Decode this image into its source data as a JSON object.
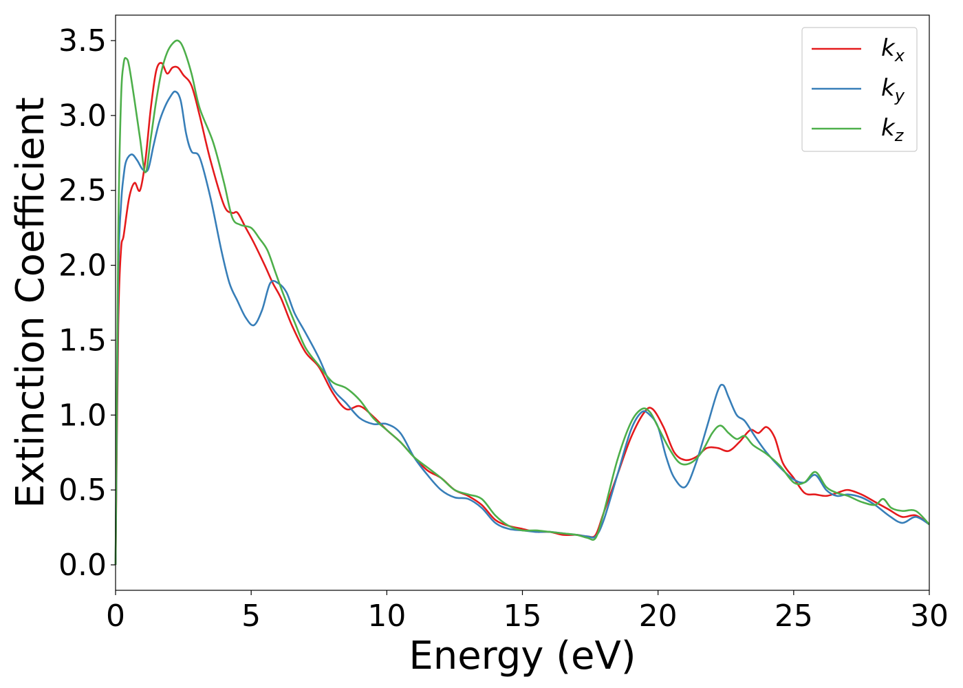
{
  "chart_data": {
    "type": "line",
    "title": "",
    "xlabel": "Energy (eV)",
    "ylabel": "Extinction Coefficient",
    "xlim": [
      0,
      30
    ],
    "ylim": [
      -0.17,
      3.67
    ],
    "xticks": [
      0,
      5,
      10,
      15,
      20,
      25,
      30
    ],
    "xtick_labels": [
      "0",
      "5",
      "10",
      "15",
      "20",
      "25",
      "30"
    ],
    "yticks": [
      0.0,
      0.5,
      1.0,
      1.5,
      2.0,
      2.5,
      3.0,
      3.5
    ],
    "ytick_labels": [
      "0.0",
      "0.5",
      "1.0",
      "1.5",
      "2.0",
      "2.5",
      "3.0",
      "3.5"
    ],
    "grid": false,
    "legend_position": "top-right",
    "series": [
      {
        "name": "k_x",
        "legend_base": "k",
        "legend_sub": "x",
        "color": "#e41a1c",
        "x": [
          0,
          0.1,
          0.2,
          0.3,
          0.5,
          0.7,
          0.9,
          1.1,
          1.3,
          1.5,
          1.7,
          1.9,
          2.1,
          2.3,
          2.5,
          2.8,
          3.1,
          3.5,
          4.0,
          4.3,
          4.5,
          4.8,
          5.1,
          5.5,
          5.8,
          6.1,
          6.5,
          7.0,
          7.5,
          8.0,
          8.5,
          9.0,
          9.5,
          10.0,
          10.5,
          11.0,
          11.5,
          12.0,
          12.5,
          13.0,
          13.5,
          14.0,
          14.5,
          15.0,
          15.5,
          16.0,
          16.5,
          17.0,
          17.4,
          17.7,
          18.0,
          18.5,
          19.0,
          19.5,
          19.8,
          20.2,
          20.6,
          21.0,
          21.4,
          21.8,
          22.2,
          22.6,
          23.0,
          23.4,
          23.7,
          24.0,
          24.3,
          24.6,
          25.0,
          25.4,
          25.8,
          26.2,
          26.6,
          27.0,
          27.5,
          28.0,
          28.5,
          29.0,
          29.5,
          30.0
        ],
        "values": [
          0.0,
          1.6,
          2.1,
          2.2,
          2.45,
          2.55,
          2.5,
          2.7,
          3.05,
          3.3,
          3.35,
          3.28,
          3.32,
          3.32,
          3.27,
          3.2,
          3.0,
          2.7,
          2.4,
          2.35,
          2.35,
          2.25,
          2.15,
          2.0,
          1.88,
          1.78,
          1.6,
          1.42,
          1.32,
          1.15,
          1.04,
          1.06,
          0.99,
          0.9,
          0.82,
          0.72,
          0.63,
          0.58,
          0.5,
          0.46,
          0.4,
          0.3,
          0.26,
          0.24,
          0.22,
          0.22,
          0.2,
          0.2,
          0.19,
          0.2,
          0.35,
          0.6,
          0.85,
          1.02,
          1.04,
          0.92,
          0.75,
          0.7,
          0.72,
          0.78,
          0.78,
          0.76,
          0.82,
          0.9,
          0.88,
          0.92,
          0.85,
          0.68,
          0.58,
          0.48,
          0.47,
          0.46,
          0.48,
          0.5,
          0.47,
          0.42,
          0.37,
          0.32,
          0.33,
          0.27
        ]
      },
      {
        "name": "k_y",
        "legend_base": "k",
        "legend_sub": "y",
        "color": "#377eb8",
        "x": [
          0,
          0.1,
          0.2,
          0.3,
          0.4,
          0.6,
          0.8,
          1.0,
          1.2,
          1.4,
          1.6,
          1.8,
          2.0,
          2.2,
          2.4,
          2.6,
          2.8,
          3.1,
          3.5,
          3.9,
          4.2,
          4.5,
          4.8,
          5.1,
          5.4,
          5.7,
          6.0,
          6.3,
          6.6,
          7.0,
          7.5,
          8.0,
          8.5,
          9.0,
          9.5,
          10.0,
          10.5,
          11.0,
          11.5,
          12.0,
          12.5,
          13.0,
          13.5,
          14.0,
          14.5,
          15.0,
          15.5,
          16.0,
          16.5,
          17.0,
          17.4,
          17.7,
          18.0,
          18.5,
          19.0,
          19.4,
          19.7,
          20.0,
          20.3,
          20.6,
          21.0,
          21.4,
          21.8,
          22.2,
          22.4,
          22.6,
          22.9,
          23.2,
          23.6,
          24.0,
          24.5,
          25.0,
          25.4,
          25.8,
          26.2,
          26.6,
          27.0,
          27.5,
          28.0,
          28.5,
          29.0,
          29.5,
          30.0
        ],
        "values": [
          0.0,
          1.9,
          2.4,
          2.6,
          2.7,
          2.74,
          2.7,
          2.64,
          2.64,
          2.8,
          2.95,
          3.05,
          3.12,
          3.16,
          3.1,
          2.88,
          2.76,
          2.72,
          2.45,
          2.1,
          1.88,
          1.76,
          1.65,
          1.6,
          1.7,
          1.88,
          1.88,
          1.82,
          1.68,
          1.55,
          1.38,
          1.18,
          1.08,
          0.98,
          0.94,
          0.94,
          0.88,
          0.72,
          0.6,
          0.5,
          0.45,
          0.44,
          0.38,
          0.28,
          0.24,
          0.23,
          0.22,
          0.22,
          0.21,
          0.2,
          0.19,
          0.19,
          0.3,
          0.6,
          0.9,
          1.02,
          1.0,
          0.92,
          0.72,
          0.58,
          0.52,
          0.68,
          0.92,
          1.16,
          1.2,
          1.12,
          1.0,
          0.96,
          0.85,
          0.75,
          0.65,
          0.57,
          0.55,
          0.6,
          0.5,
          0.46,
          0.47,
          0.45,
          0.4,
          0.33,
          0.28,
          0.32,
          0.27
        ]
      },
      {
        "name": "k_z",
        "legend_base": "k",
        "legend_sub": "z",
        "color": "#4daf4a",
        "x": [
          0,
          0.1,
          0.2,
          0.3,
          0.4,
          0.5,
          0.7,
          0.9,
          1.1,
          1.3,
          1.5,
          1.7,
          1.9,
          2.1,
          2.3,
          2.5,
          2.8,
          3.1,
          3.6,
          4.0,
          4.3,
          4.6,
          5.0,
          5.3,
          5.6,
          5.9,
          6.2,
          6.6,
          7.0,
          7.5,
          8.0,
          8.5,
          9.0,
          9.5,
          10.0,
          10.5,
          11.0,
          11.5,
          12.0,
          12.5,
          13.0,
          13.5,
          14.0,
          14.5,
          15.0,
          15.5,
          16.0,
          16.5,
          17.0,
          17.4,
          17.7,
          18.0,
          18.5,
          19.0,
          19.4,
          19.7,
          20.0,
          20.4,
          20.8,
          21.2,
          21.6,
          22.0,
          22.3,
          22.6,
          22.9,
          23.2,
          23.5,
          24.0,
          24.5,
          25.0,
          25.4,
          25.8,
          26.2,
          26.6,
          27.0,
          27.5,
          28.0,
          28.3,
          28.6,
          29.0,
          29.5,
          30.0
        ],
        "values": [
          0.0,
          2.2,
          3.1,
          3.35,
          3.38,
          3.33,
          3.1,
          2.85,
          2.62,
          2.85,
          3.1,
          3.3,
          3.42,
          3.48,
          3.5,
          3.45,
          3.28,
          3.05,
          2.82,
          2.55,
          2.32,
          2.27,
          2.25,
          2.18,
          2.1,
          1.95,
          1.8,
          1.62,
          1.45,
          1.33,
          1.22,
          1.18,
          1.1,
          0.98,
          0.9,
          0.82,
          0.72,
          0.65,
          0.58,
          0.5,
          0.47,
          0.44,
          0.33,
          0.26,
          0.23,
          0.23,
          0.22,
          0.21,
          0.2,
          0.18,
          0.18,
          0.35,
          0.7,
          0.95,
          1.04,
          1.02,
          0.92,
          0.78,
          0.68,
          0.68,
          0.75,
          0.88,
          0.93,
          0.88,
          0.84,
          0.86,
          0.8,
          0.74,
          0.66,
          0.55,
          0.55,
          0.62,
          0.52,
          0.48,
          0.46,
          0.42,
          0.4,
          0.44,
          0.38,
          0.36,
          0.36,
          0.27
        ]
      }
    ]
  }
}
